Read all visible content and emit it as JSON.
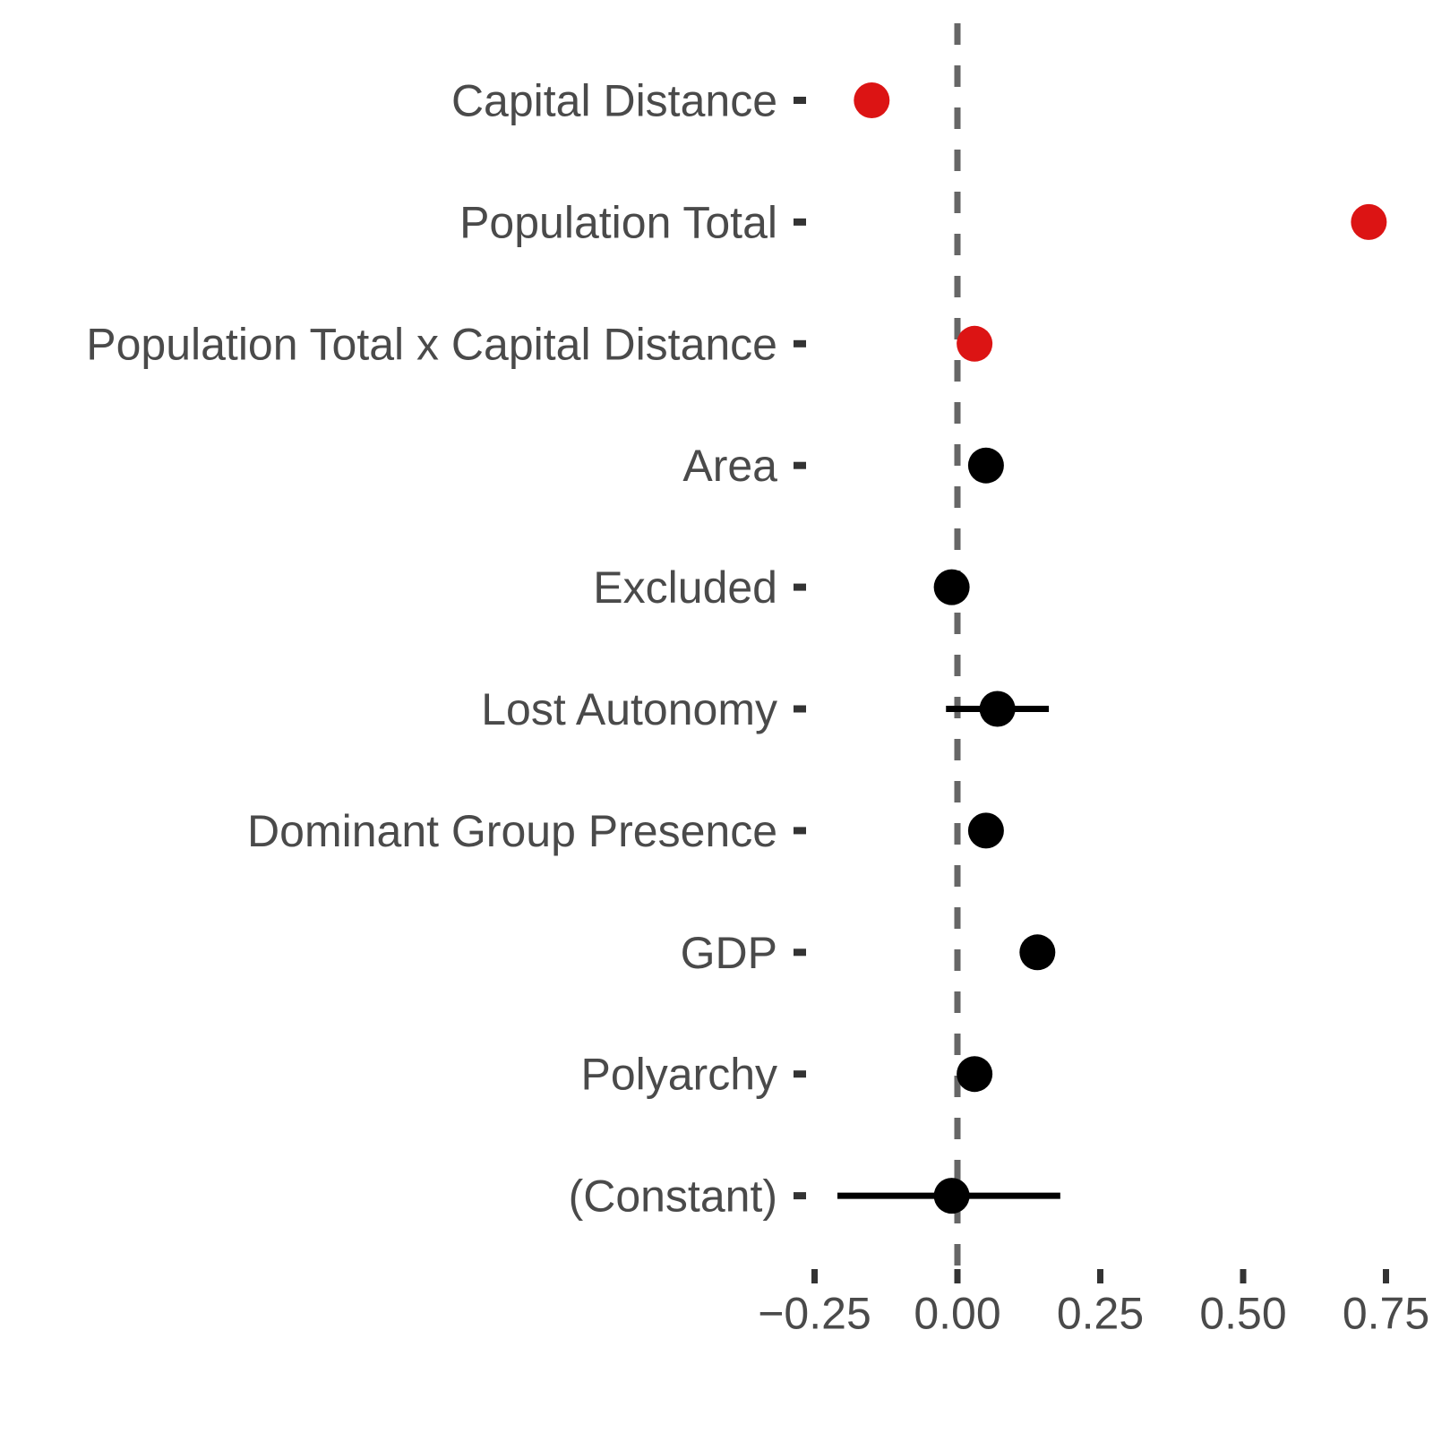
{
  "chart_data": {
    "type": "scatter",
    "subtype": "dot-and-whisker coefficient plot",
    "title": "",
    "xlabel": "",
    "ylabel": "",
    "grid": false,
    "legend": "none",
    "xlim": [
      -0.29,
      0.83
    ],
    "zero_reference_line": 0,
    "x_axis": {
      "tick_values": [
        -0.25,
        0.0,
        0.25,
        0.5,
        0.75
      ],
      "tick_labels": [
        "−0.25",
        "0.00",
        "0.25",
        "0.50",
        "0.75"
      ]
    },
    "rows": [
      {
        "label": "Capital Distance",
        "estimate": -0.15,
        "ci_low": null,
        "ci_high": null,
        "significant": true
      },
      {
        "label": "Population Total",
        "estimate": 0.72,
        "ci_low": null,
        "ci_high": null,
        "significant": true
      },
      {
        "label": "Population Total x Capital Distance",
        "estimate": 0.03,
        "ci_low": null,
        "ci_high": null,
        "significant": true
      },
      {
        "label": "Area",
        "estimate": 0.05,
        "ci_low": null,
        "ci_high": null,
        "significant": false
      },
      {
        "label": "Excluded",
        "estimate": -0.01,
        "ci_low": null,
        "ci_high": null,
        "significant": false
      },
      {
        "label": "Lost Autonomy",
        "estimate": 0.07,
        "ci_low": -0.02,
        "ci_high": 0.16,
        "significant": false
      },
      {
        "label": "Dominant Group Presence",
        "estimate": 0.05,
        "ci_low": null,
        "ci_high": null,
        "significant": false
      },
      {
        "label": "GDP",
        "estimate": 0.14,
        "ci_low": null,
        "ci_high": null,
        "significant": false
      },
      {
        "label": "Polyarchy",
        "estimate": 0.03,
        "ci_low": null,
        "ci_high": null,
        "significant": false
      },
      {
        "label": "(Constant)",
        "estimate": -0.01,
        "ci_low": -0.21,
        "ci_high": 0.18,
        "significant": false
      }
    ],
    "colors": {
      "significant_dot": "#dc1414",
      "nonsignificant_dot": "#000000",
      "ci_line": "#000000",
      "zero_line": "#666666",
      "axis_tick": "#333333",
      "axis_text": "#4a4a4a",
      "background": "#ffffff"
    }
  }
}
